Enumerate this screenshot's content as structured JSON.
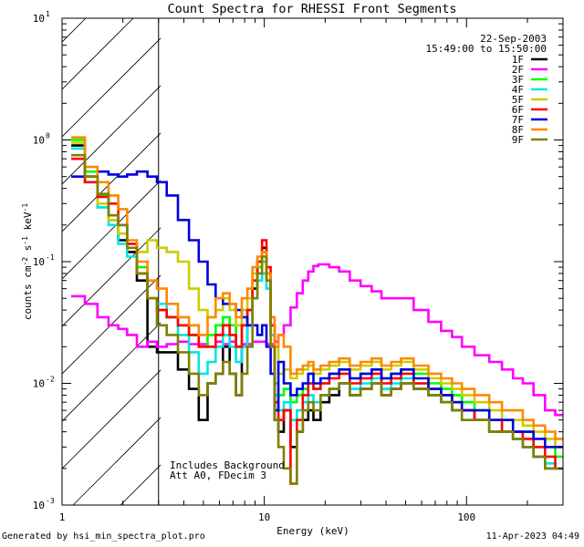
{
  "chart_data": {
    "type": "line",
    "title": "Count Spectra for RHESSI Front Segments",
    "xlabel": "Energy (keV)",
    "ylabel": "counts cm-2 s-1 keV-1",
    "xscale": "log",
    "yscale": "log",
    "xlim": [
      1,
      300
    ],
    "ylim": [
      0.001,
      10
    ],
    "x_ticks": [
      {
        "value": 1,
        "label": "1"
      },
      {
        "value": 10,
        "label": "10"
      },
      {
        "value": 100,
        "label": "100"
      }
    ],
    "y_ticks": [
      {
        "value": 10,
        "base": "10",
        "exp": "1"
      },
      {
        "value": 1,
        "base": "10",
        "exp": "0"
      },
      {
        "value": 0.1,
        "base": "10",
        "exp": "-1"
      },
      {
        "value": 0.01,
        "base": "10",
        "exp": "-2"
      },
      {
        "value": 0.001,
        "base": "10",
        "exp": "-3"
      }
    ],
    "date": "22-Sep-2003",
    "time_range": "15:49:00 to 15:50:00",
    "attenuator_cutoff_keV": 3,
    "annotations": [
      "Includes Background",
      "Att A0, FDecim 3"
    ],
    "series": [
      {
        "name": "1F",
        "color": "#000000",
        "x": [
          1.2,
          1.4,
          1.6,
          1.8,
          2.0,
          2.2,
          2.5,
          2.8,
          3.1,
          3.5,
          4,
          4.5,
          5,
          5.5,
          6,
          6.5,
          7,
          7.5,
          8,
          8.5,
          9,
          9.5,
          10,
          10.5,
          11,
          11.5,
          12,
          13,
          14,
          15,
          16,
          17,
          18,
          20,
          22,
          25,
          28,
          32,
          36,
          40,
          45,
          50,
          60,
          70,
          80,
          90,
          100,
          120,
          140,
          160,
          180,
          200,
          230,
          260,
          290
        ],
        "y": [
          0.9,
          0.5,
          0.28,
          0.22,
          0.15,
          0.12,
          0.07,
          0.02,
          0.018,
          0.018,
          0.013,
          0.009,
          0.005,
          0.01,
          0.012,
          0.02,
          0.012,
          0.008,
          0.02,
          0.03,
          0.06,
          0.1,
          0.13,
          0.08,
          0.03,
          0.005,
          0.004,
          0.006,
          0.003,
          0.004,
          0.005,
          0.006,
          0.005,
          0.007,
          0.008,
          0.01,
          0.008,
          0.009,
          0.01,
          0.008,
          0.009,
          0.01,
          0.009,
          0.008,
          0.007,
          0.006,
          0.006,
          0.005,
          0.004,
          0.004,
          0.0035,
          0.003,
          0.0025,
          0.002,
          0.002
        ]
      },
      {
        "name": "2F",
        "color": "#ff00ff",
        "x": [
          1.2,
          1.4,
          1.6,
          1.8,
          2.0,
          2.2,
          2.5,
          2.8,
          3.1,
          3.5,
          4,
          4.5,
          5,
          5.5,
          6,
          6.5,
          7,
          7.5,
          8,
          8.5,
          9,
          9.5,
          10,
          10.5,
          11,
          11.5,
          12,
          13,
          14,
          15,
          16,
          17,
          18,
          19,
          20,
          22,
          25,
          28,
          32,
          36,
          40,
          45,
          50,
          60,
          70,
          80,
          90,
          100,
          120,
          140,
          160,
          180,
          200,
          230,
          260,
          290
        ],
        "y": [
          0.052,
          0.045,
          0.035,
          0.03,
          0.028,
          0.025,
          0.02,
          0.022,
          0.02,
          0.021,
          0.022,
          0.021,
          0.021,
          0.02,
          0.022,
          0.021,
          0.022,
          0.02,
          0.021,
          0.021,
          0.022,
          0.022,
          0.022,
          0.021,
          0.021,
          0.022,
          0.025,
          0.03,
          0.042,
          0.055,
          0.07,
          0.083,
          0.092,
          0.095,
          0.095,
          0.09,
          0.083,
          0.07,
          0.063,
          0.057,
          0.05,
          0.05,
          0.05,
          0.04,
          0.032,
          0.027,
          0.024,
          0.02,
          0.017,
          0.015,
          0.013,
          0.011,
          0.01,
          0.008,
          0.006,
          0.0055
        ]
      },
      {
        "name": "3F",
        "color": "#00ff00",
        "x": [
          1.2,
          1.4,
          1.6,
          1.8,
          2.0,
          2.2,
          2.5,
          2.8,
          3.1,
          3.5,
          4,
          4.5,
          5,
          5.5,
          6,
          6.5,
          7,
          7.5,
          8,
          8.5,
          9,
          9.5,
          10,
          10.5,
          11,
          11.5,
          12,
          13,
          14,
          15,
          16,
          17,
          18,
          20,
          22,
          25,
          28,
          32,
          36,
          40,
          45,
          50,
          60,
          70,
          80,
          90,
          100,
          120,
          140,
          160,
          180,
          200,
          230,
          260,
          290
        ],
        "y": [
          1.0,
          0.55,
          0.35,
          0.24,
          0.2,
          0.14,
          0.09,
          0.05,
          0.04,
          0.035,
          0.03,
          0.025,
          0.02,
          0.025,
          0.03,
          0.035,
          0.03,
          0.02,
          0.03,
          0.04,
          0.07,
          0.09,
          0.1,
          0.07,
          0.03,
          0.01,
          0.008,
          0.009,
          0.007,
          0.008,
          0.009,
          0.01,
          0.009,
          0.01,
          0.012,
          0.013,
          0.011,
          0.012,
          0.013,
          0.011,
          0.012,
          0.013,
          0.012,
          0.01,
          0.009,
          0.008,
          0.007,
          0.006,
          0.005,
          0.005,
          0.004,
          0.004,
          0.003,
          0.003,
          0.0025
        ]
      },
      {
        "name": "4F",
        "color": "#00e5e5",
        "x": [
          1.2,
          1.4,
          1.6,
          1.8,
          2.0,
          2.2,
          2.5,
          2.8,
          3.1,
          3.5,
          4,
          4.5,
          5,
          5.5,
          6,
          6.5,
          7,
          7.5,
          8,
          8.5,
          9,
          9.5,
          10,
          10.5,
          11,
          11.5,
          12,
          13,
          14,
          15,
          16,
          17,
          18,
          20,
          22,
          25,
          28,
          32,
          36,
          40,
          45,
          50,
          60,
          70,
          80,
          90,
          100,
          120,
          140,
          160,
          180,
          200,
          230,
          260,
          290
        ],
        "y": [
          0.85,
          0.45,
          0.28,
          0.2,
          0.14,
          0.11,
          0.08,
          0.05,
          0.045,
          0.035,
          0.025,
          0.018,
          0.012,
          0.015,
          0.02,
          0.025,
          0.02,
          0.015,
          0.02,
          0.03,
          0.05,
          0.07,
          0.08,
          0.06,
          0.025,
          0.008,
          0.006,
          0.007,
          0.005,
          0.006,
          0.007,
          0.008,
          0.007,
          0.008,
          0.009,
          0.01,
          0.009,
          0.01,
          0.011,
          0.009,
          0.01,
          0.011,
          0.01,
          0.008,
          0.007,
          0.006,
          0.006,
          0.005,
          0.004,
          0.004,
          0.0035,
          0.003,
          0.0025,
          0.0022,
          0.002
        ]
      },
      {
        "name": "5F",
        "color": "#cccc00",
        "x": [
          1.2,
          1.4,
          1.6,
          1.8,
          2.0,
          2.2,
          2.5,
          2.8,
          3.1,
          3.5,
          4,
          4.5,
          5,
          5.5,
          6,
          6.5,
          7,
          7.5,
          8,
          8.5,
          9,
          9.5,
          10,
          10.5,
          11,
          11.5,
          12,
          13,
          14,
          15,
          16,
          17,
          18,
          20,
          22,
          25,
          28,
          32,
          36,
          40,
          45,
          50,
          60,
          70,
          80,
          90,
          100,
          120,
          140,
          160,
          180,
          200,
          230,
          260,
          290
        ],
        "y": [
          0.95,
          0.5,
          0.3,
          0.22,
          0.17,
          0.13,
          0.12,
          0.15,
          0.13,
          0.12,
          0.1,
          0.06,
          0.04,
          0.035,
          0.04,
          0.05,
          0.04,
          0.03,
          0.04,
          0.05,
          0.08,
          0.1,
          0.12,
          0.08,
          0.03,
          0.02,
          0.012,
          0.013,
          0.011,
          0.012,
          0.013,
          0.014,
          0.012,
          0.013,
          0.014,
          0.015,
          0.013,
          0.014,
          0.015,
          0.013,
          0.014,
          0.015,
          0.013,
          0.011,
          0.01,
          0.009,
          0.008,
          0.007,
          0.006,
          0.005,
          0.005,
          0.0045,
          0.004,
          0.0035,
          0.003
        ]
      },
      {
        "name": "6F",
        "color": "#ff0000",
        "x": [
          1.2,
          1.4,
          1.6,
          1.8,
          2.0,
          2.2,
          2.5,
          2.8,
          3.1,
          3.5,
          4,
          4.5,
          5,
          5.5,
          6,
          6.5,
          7,
          7.5,
          8,
          8.5,
          9,
          9.5,
          10,
          10.5,
          11,
          11.5,
          12,
          13,
          14,
          15,
          16,
          17,
          18,
          20,
          22,
          25,
          28,
          32,
          36,
          40,
          45,
          50,
          60,
          70,
          80,
          90,
          100,
          120,
          140,
          160,
          180,
          200,
          230,
          260,
          290
        ],
        "y": [
          0.7,
          0.45,
          0.34,
          0.3,
          0.2,
          0.14,
          0.08,
          0.05,
          0.04,
          0.035,
          0.03,
          0.025,
          0.02,
          0.02,
          0.025,
          0.03,
          0.025,
          0.02,
          0.03,
          0.04,
          0.07,
          0.1,
          0.15,
          0.09,
          0.03,
          0.007,
          0.005,
          0.006,
          0.0015,
          0.005,
          0.008,
          0.01,
          0.009,
          0.01,
          0.011,
          0.012,
          0.01,
          0.011,
          0.012,
          0.01,
          0.011,
          0.012,
          0.01,
          0.009,
          0.008,
          0.007,
          0.006,
          0.005,
          0.005,
          0.004,
          0.004,
          0.0035,
          0.003,
          0.0025,
          0.002
        ]
      },
      {
        "name": "7F",
        "color": "#0000dd",
        "x": [
          1.2,
          1.4,
          1.6,
          1.8,
          2.0,
          2.2,
          2.5,
          2.8,
          3.1,
          3.5,
          4,
          4.5,
          5,
          5.5,
          6,
          6.5,
          7,
          7.5,
          8,
          8.5,
          9,
          9.5,
          10,
          10.5,
          11,
          11.5,
          12,
          13,
          14,
          15,
          16,
          17,
          18,
          20,
          22,
          25,
          28,
          32,
          36,
          40,
          45,
          50,
          60,
          70,
          80,
          90,
          100,
          120,
          140,
          160,
          180,
          200,
          230,
          260,
          290
        ],
        "y": [
          0.5,
          0.5,
          0.55,
          0.52,
          0.5,
          0.52,
          0.55,
          0.5,
          0.45,
          0.35,
          0.22,
          0.15,
          0.1,
          0.065,
          0.05,
          0.045,
          0.045,
          0.04,
          0.035,
          0.03,
          0.03,
          0.025,
          0.03,
          0.02,
          0.012,
          0.006,
          0.015,
          0.01,
          0.008,
          0.009,
          0.01,
          0.012,
          0.01,
          0.011,
          0.012,
          0.013,
          0.011,
          0.012,
          0.013,
          0.011,
          0.012,
          0.013,
          0.011,
          0.009,
          0.008,
          0.007,
          0.006,
          0.006,
          0.005,
          0.005,
          0.004,
          0.004,
          0.0035,
          0.003,
          0.003
        ]
      },
      {
        "name": "8F",
        "color": "#ff8800",
        "x": [
          1.2,
          1.4,
          1.6,
          1.8,
          2.0,
          2.2,
          2.5,
          2.8,
          3.1,
          3.5,
          4,
          4.5,
          5,
          5.5,
          6,
          6.5,
          7,
          7.5,
          8,
          8.5,
          9,
          9.5,
          10,
          10.5,
          11,
          11.5,
          12,
          13,
          14,
          15,
          16,
          17,
          18,
          20,
          22,
          25,
          28,
          32,
          36,
          40,
          45,
          50,
          60,
          70,
          80,
          90,
          100,
          120,
          140,
          160,
          180,
          200,
          230,
          260,
          290
        ],
        "y": [
          1.05,
          0.6,
          0.45,
          0.35,
          0.27,
          0.15,
          0.1,
          0.07,
          0.06,
          0.045,
          0.035,
          0.03,
          0.025,
          0.035,
          0.05,
          0.055,
          0.045,
          0.035,
          0.05,
          0.06,
          0.09,
          0.11,
          0.12,
          0.08,
          0.035,
          0.02,
          0.025,
          0.02,
          0.012,
          0.013,
          0.014,
          0.015,
          0.013,
          0.014,
          0.015,
          0.016,
          0.014,
          0.015,
          0.016,
          0.014,
          0.015,
          0.016,
          0.014,
          0.012,
          0.011,
          0.01,
          0.009,
          0.008,
          0.007,
          0.006,
          0.006,
          0.005,
          0.0045,
          0.004,
          0.0035
        ]
      },
      {
        "name": "9F",
        "color": "#808000",
        "x": [
          1.2,
          1.4,
          1.6,
          1.8,
          2.0,
          2.2,
          2.5,
          2.8,
          3.1,
          3.5,
          4,
          4.5,
          5,
          5.5,
          6,
          6.5,
          7,
          7.5,
          8,
          8.5,
          9,
          9.5,
          10,
          10.5,
          11,
          11.5,
          12,
          13,
          14,
          15,
          16,
          17,
          18,
          20,
          22,
          25,
          28,
          32,
          36,
          40,
          45,
          50,
          60,
          70,
          80,
          90,
          100,
          120,
          140,
          160,
          180,
          200,
          230,
          260,
          290
        ],
        "y": [
          0.75,
          0.5,
          0.36,
          0.24,
          0.2,
          0.13,
          0.08,
          0.05,
          0.03,
          0.025,
          0.018,
          0.012,
          0.008,
          0.01,
          0.012,
          0.015,
          0.012,
          0.008,
          0.012,
          0.02,
          0.05,
          0.08,
          0.11,
          0.07,
          0.02,
          0.005,
          0.003,
          0.002,
          0.0015,
          0.004,
          0.006,
          0.007,
          0.006,
          0.008,
          0.009,
          0.01,
          0.008,
          0.009,
          0.01,
          0.008,
          0.009,
          0.01,
          0.009,
          0.008,
          0.007,
          0.006,
          0.005,
          0.005,
          0.004,
          0.004,
          0.0035,
          0.003,
          0.0025,
          0.002,
          0.002
        ]
      }
    ]
  },
  "footer": {
    "generated_by": "Generated by hsi_min_spectra_plot.pro",
    "generated_on": "11-Apr-2023 04:49"
  }
}
